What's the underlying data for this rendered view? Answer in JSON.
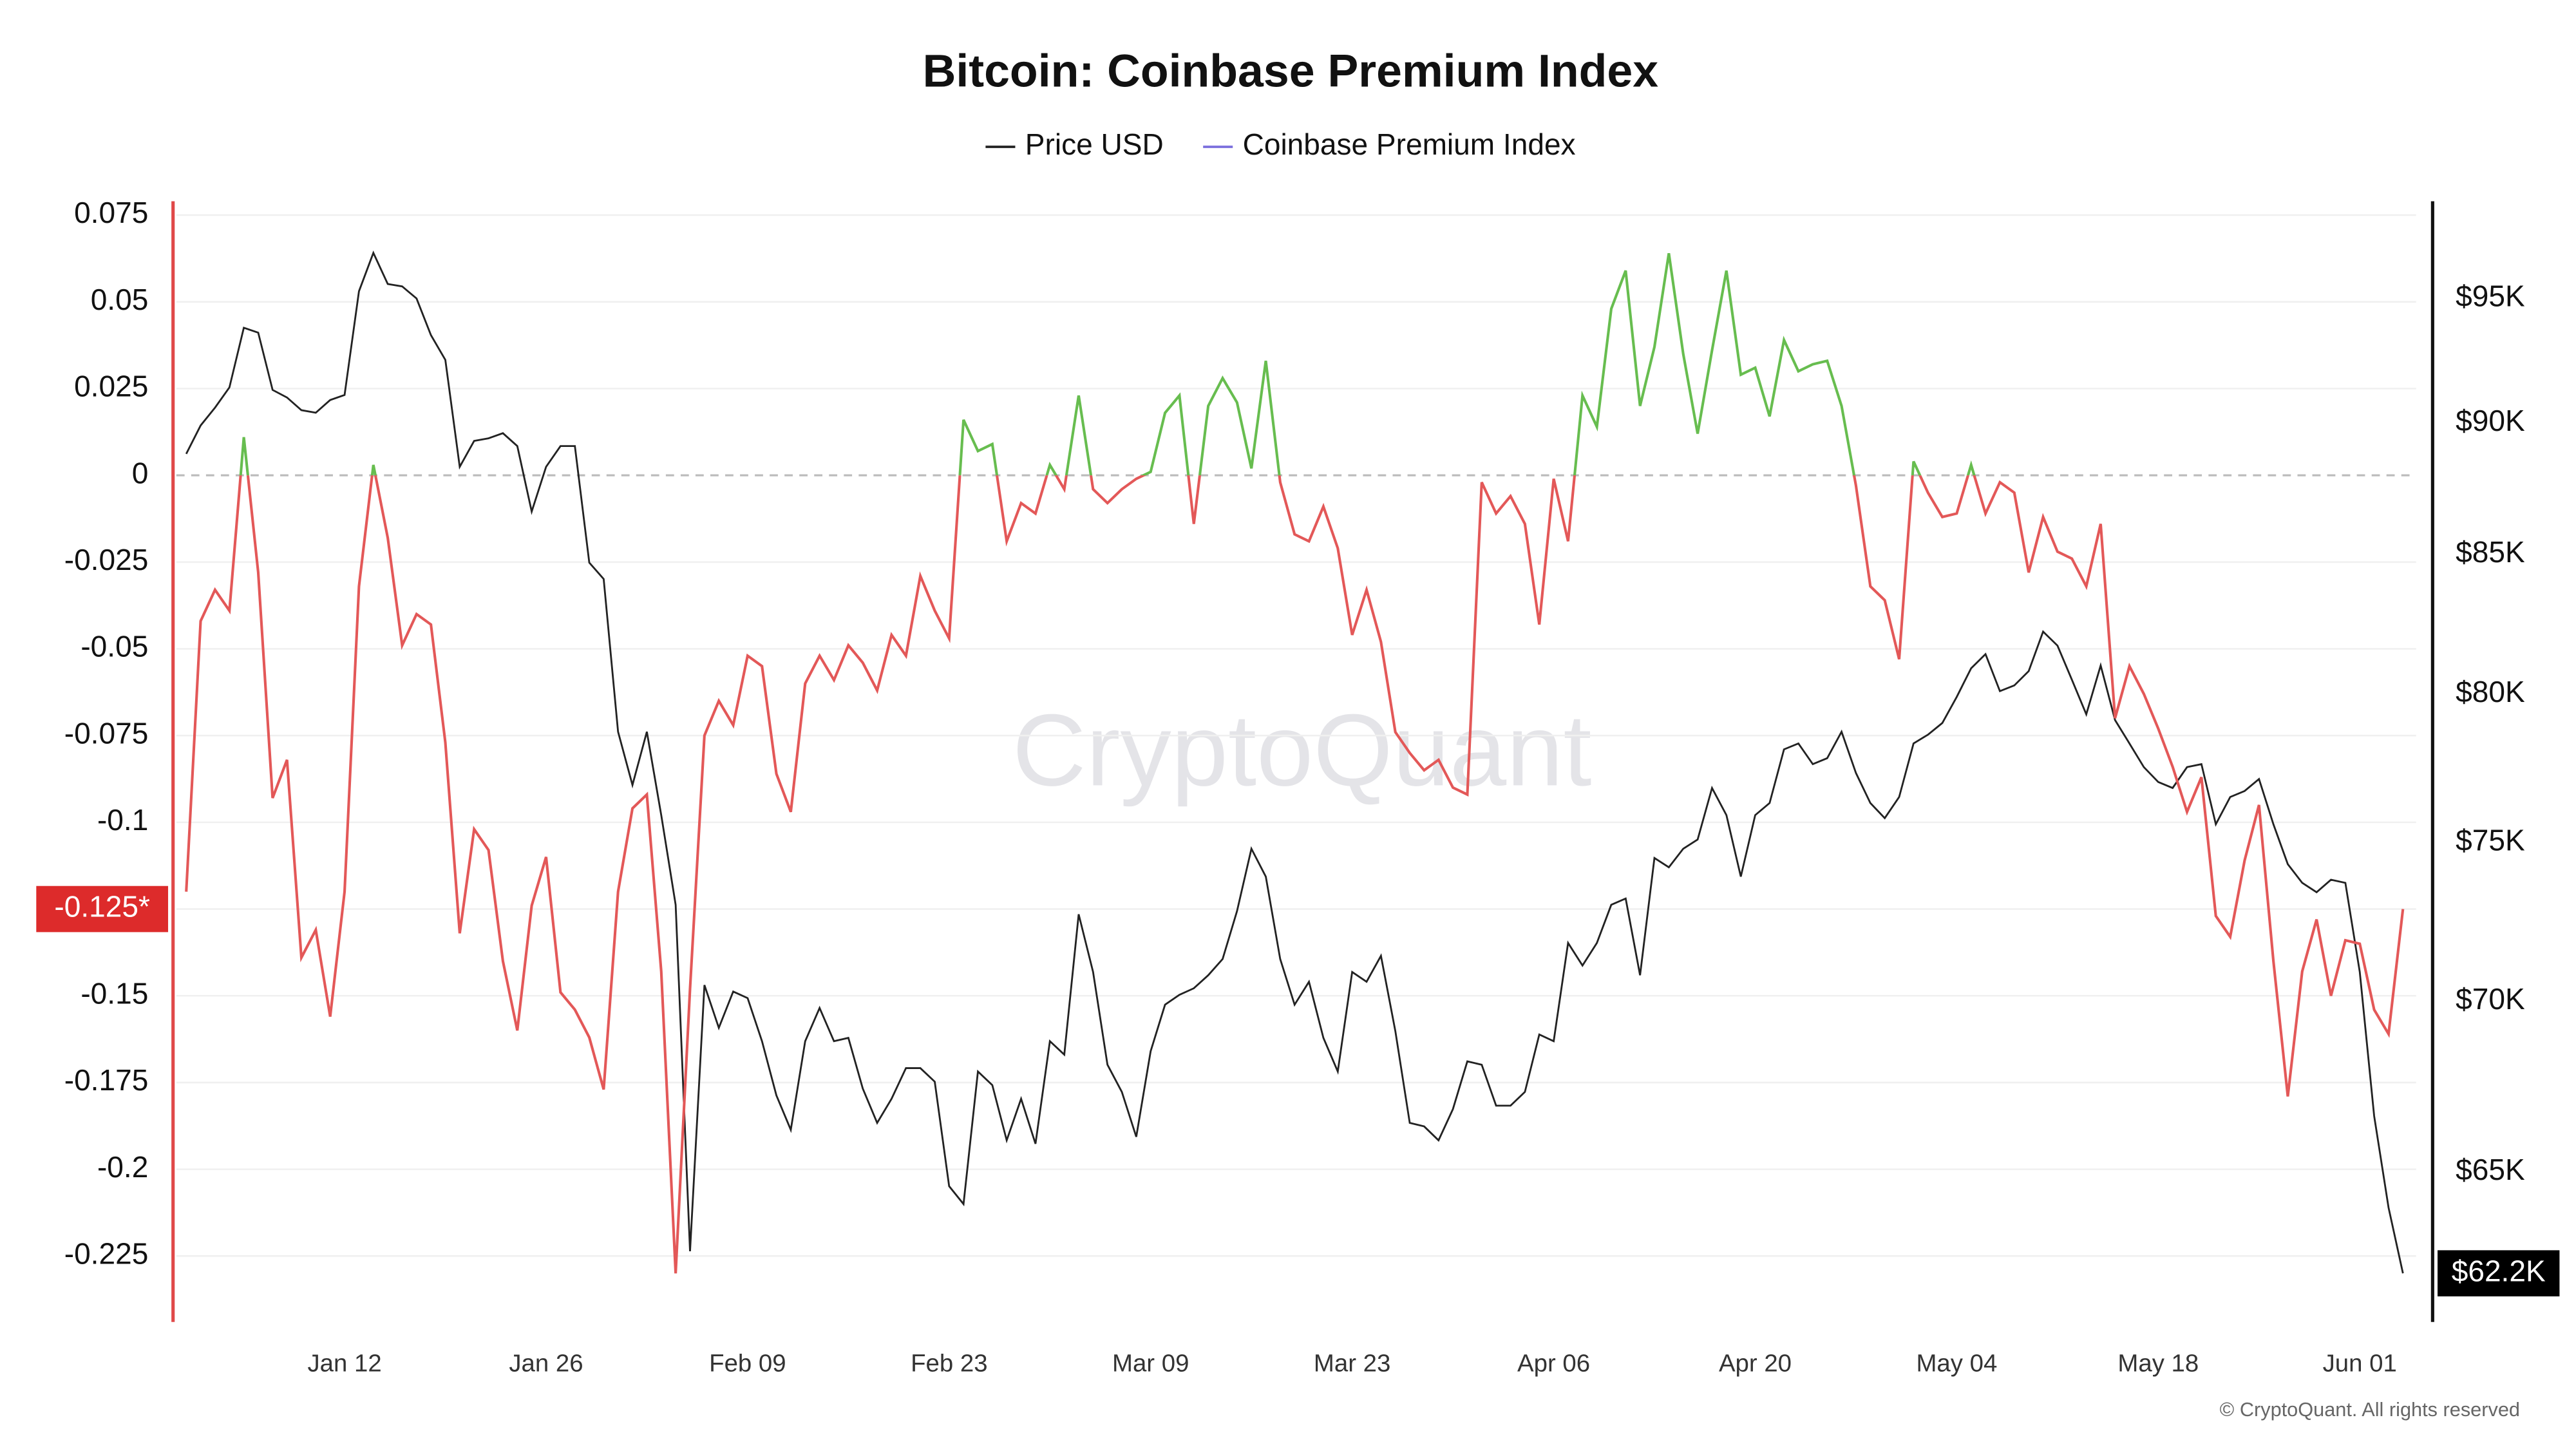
{
  "chart_data": {
    "type": "line",
    "title": "Bitcoin: Coinbase Premium Index",
    "watermark": "CryptoQuant",
    "footer": "© CryptoQuant. All rights reserved",
    "categories": [
      null,
      null,
      null,
      null,
      null,
      null,
      null,
      null,
      null,
      null,
      null,
      "Jan 12",
      null,
      null,
      null,
      null,
      null,
      null,
      null,
      null,
      null,
      null,
      null,
      null,
      null,
      "Jan 26",
      null,
      null,
      null,
      null,
      null,
      null,
      null,
      null,
      null,
      null,
      null,
      null,
      null,
      "Feb 09",
      null,
      null,
      null,
      null,
      null,
      null,
      null,
      null,
      null,
      null,
      null,
      null,
      null,
      "Feb 23",
      null,
      null,
      null,
      null,
      null,
      null,
      null,
      null,
      null,
      null,
      null,
      null,
      null,
      "Mar 09",
      null,
      null,
      null,
      null,
      null,
      null,
      null,
      null,
      null,
      null,
      null,
      null,
      null,
      "Mar 23",
      null,
      null,
      null,
      null,
      null,
      null,
      null,
      null,
      null,
      null,
      null,
      null,
      null,
      "Apr 06",
      null,
      null,
      null,
      null,
      null,
      null,
      null,
      null,
      null,
      null,
      null,
      null,
      null,
      "Apr 20",
      null,
      null,
      null,
      null,
      null,
      null,
      null,
      null,
      null,
      null,
      null,
      null,
      null,
      "May 04",
      null,
      null,
      null,
      null,
      null,
      null,
      null,
      null,
      null,
      null,
      null,
      null,
      null,
      "May 18",
      null,
      null,
      null,
      null,
      null,
      null,
      null,
      null,
      null,
      null,
      null,
      null,
      null,
      "Jun 01",
      null,
      null,
      null
    ],
    "series": [
      {
        "name": "Price USD",
        "color": "#222222",
        "axis": "y2",
        "last_label": "$62.2K",
        "values": [
          88800,
          89900,
          90600,
          91400,
          93800,
          93600,
          91300,
          91000,
          90500,
          90400,
          90900,
          91100,
          95300,
          96900,
          95600,
          95500,
          95000,
          93500,
          92500,
          88300,
          89300,
          89400,
          89600,
          89100,
          86600,
          88300,
          89100,
          89100,
          84700,
          84100,
          78700,
          76900,
          78700,
          75900,
          73000,
          62800,
          70500,
          69200,
          70300,
          70100,
          68800,
          67200,
          66200,
          68800,
          69800,
          68800,
          68900,
          67400,
          66400,
          67100,
          68000,
          68000,
          67600,
          64600,
          64100,
          67900,
          67500,
          65900,
          67100,
          65800,
          68800,
          68400,
          72700,
          70900,
          68100,
          67300,
          66000,
          68500,
          69900,
          70200,
          70400,
          70800,
          71300,
          72800,
          74800,
          73900,
          71300,
          69900,
          70600,
          68900,
          67900,
          70900,
          70600,
          71400,
          69100,
          66400,
          66300,
          65900,
          66800,
          68200,
          68100,
          66900,
          66900,
          67300,
          69000,
          68800,
          71800,
          71100,
          71800,
          73000,
          73200,
          70800,
          74500,
          74200,
          74800,
          75100,
          76800,
          75900,
          73900,
          75900,
          76300,
          78100,
          78300,
          77600,
          77800,
          78700,
          77300,
          76300,
          75800,
          76500,
          78300,
          78600,
          79000,
          79900,
          80900,
          81400,
          80100,
          80300,
          80800,
          82200,
          81700,
          80500,
          79300,
          81000,
          79100,
          78300,
          77500,
          77000,
          76800,
          77500,
          77600,
          75600,
          76500,
          76700,
          77100,
          75600,
          74300,
          73700,
          73400,
          73800,
          73700,
          70900,
          66600,
          64000,
          62200
        ]
      },
      {
        "name": "Coinbase Premium Index",
        "color": "#7b6fdd",
        "positive_color": "#67bd4f",
        "negative_color": "#e35858",
        "last_label": "-0.125*",
        "values": [
          -0.12,
          -0.042,
          -0.033,
          -0.039,
          0.011,
          -0.028,
          -0.093,
          -0.082,
          -0.139,
          -0.131,
          -0.156,
          -0.12,
          -0.032,
          0.003,
          -0.018,
          -0.049,
          -0.04,
          -0.043,
          -0.077,
          -0.132,
          -0.102,
          -0.108,
          -0.14,
          -0.16,
          -0.124,
          -0.11,
          -0.149,
          -0.154,
          -0.162,
          -0.177,
          -0.12,
          -0.096,
          -0.092,
          -0.143,
          -0.23,
          -0.148,
          -0.075,
          -0.065,
          -0.072,
          -0.052,
          -0.055,
          -0.086,
          -0.097,
          -0.06,
          -0.052,
          -0.059,
          -0.049,
          -0.054,
          -0.062,
          -0.046,
          -0.052,
          -0.029,
          -0.039,
          -0.047,
          0.016,
          0.007,
          0.009,
          -0.019,
          -0.008,
          -0.011,
          0.003,
          -0.004,
          0.023,
          -0.004,
          -0.008,
          -0.004,
          -0.001,
          0.001,
          0.018,
          0.023,
          -0.014,
          0.02,
          0.028,
          0.021,
          0.002,
          0.033,
          -0.002,
          -0.017,
          -0.019,
          -0.009,
          -0.021,
          -0.046,
          -0.033,
          -0.048,
          -0.074,
          -0.08,
          -0.085,
          -0.082,
          -0.09,
          -0.092,
          -0.002,
          -0.011,
          -0.006,
          -0.014,
          -0.043,
          -0.001,
          -0.019,
          0.023,
          0.014,
          0.048,
          0.059,
          0.02,
          0.037,
          0.064,
          0.035,
          0.012,
          0.036,
          0.059,
          0.029,
          0.031,
          0.017,
          0.039,
          0.03,
          0.032,
          0.033,
          0.02,
          -0.003,
          -0.032,
          -0.036,
          -0.053,
          0.004,
          -0.005,
          -0.012,
          -0.011,
          0.003,
          -0.011,
          -0.002,
          -0.005,
          -0.028,
          -0.012,
          -0.022,
          -0.024,
          -0.032,
          -0.014,
          -0.07,
          -0.055,
          -0.063,
          -0.073,
          -0.084,
          -0.097,
          -0.087,
          -0.127,
          -0.133,
          -0.111,
          -0.095,
          -0.14,
          -0.179,
          -0.143,
          -0.128,
          -0.15,
          -0.134,
          -0.135,
          -0.154,
          -0.161,
          -0.125
        ]
      }
    ],
    "ylim": [
      -0.244,
      0.079
    ],
    "yticks": [
      0.075,
      0.05,
      0.025,
      0,
      -0.025,
      -0.05,
      -0.075,
      -0.1,
      -0.125,
      -0.15,
      -0.175,
      -0.2,
      -0.225
    ],
    "y2lim": [
      60900,
      99100
    ],
    "y2_log": true,
    "y2ticks": [
      {
        "value": 95000,
        "label": "$95K"
      },
      {
        "value": 90000,
        "label": "$90K"
      },
      {
        "value": 85000,
        "label": "$85K"
      },
      {
        "value": 80000,
        "label": "$80K"
      },
      {
        "value": 75000,
        "label": "$75K"
      },
      {
        "value": 70000,
        "label": "$70K"
      },
      {
        "value": 65000,
        "label": "$65K"
      }
    ],
    "grid": true,
    "legend": "top"
  }
}
